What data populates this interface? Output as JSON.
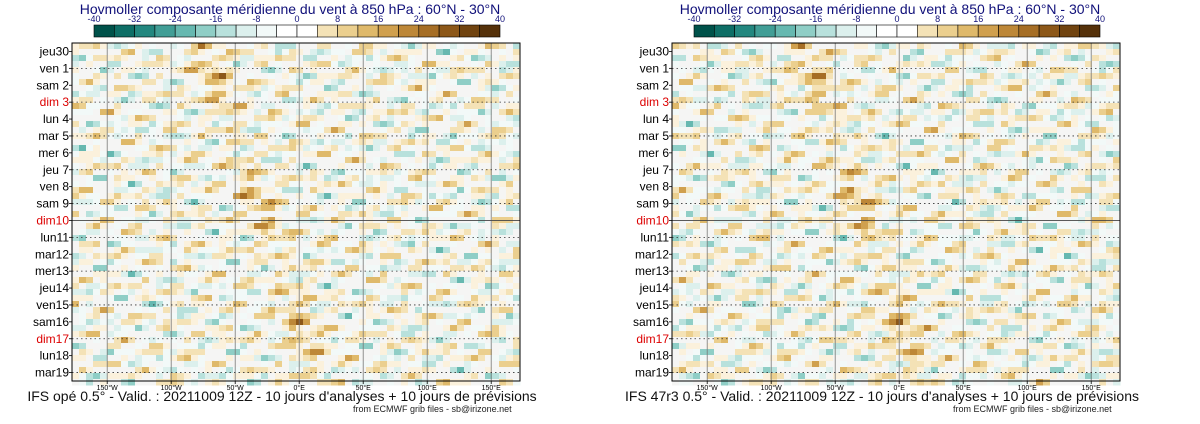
{
  "panels": [
    {
      "title": "Hovmoller composante méridienne du vent à 850 hPa : 60°N - 30°N",
      "caption": "IFS opé 0.5° - Valid. : 20211009 12Z - 10 jours d'analyses + 10 jours de prévisions",
      "credit": "from ECMWF grib files - sb@irizone.net"
    },
    {
      "title": "Hovmoller composante méridienne du vent à 850 hPa : 60°N - 30°N",
      "caption": "IFS 47r3 0.5° - Valid. : 20211009 12Z - 10 jours d'analyses + 10 jours de prévisions",
      "credit": "from ECMWF grib files - sb@irizone.net"
    }
  ],
  "colors": {
    "weekend": "#dd0000",
    "title": "#10107a",
    "neg": [
      "#00524a",
      "#0e6e66",
      "#23877f",
      "#419e96",
      "#66b8b0",
      "#8fcec6",
      "#b8e1dc",
      "#dcf0ed",
      "#f2f9f8"
    ],
    "pos": [
      "#fbf1dc",
      "#f4e2b6",
      "#ebcf8e",
      "#dfb96a",
      "#d0a04e",
      "#bd8737",
      "#a66e25",
      "#8c5718",
      "#70430f",
      "#55310a"
    ]
  },
  "chart_data": {
    "type": "heatmap",
    "variable": "composante méridienne du vent à 850 hPa",
    "colorbar": {
      "ticks": [
        "-40",
        "-32",
        "-24",
        "-16",
        "-8",
        "0",
        "8",
        "16",
        "24",
        "32",
        "40"
      ],
      "range": [
        -40,
        40
      ]
    },
    "x_ticks": [
      "150°W",
      "100°W",
      "50°W",
      "0°E",
      "50°E",
      "100°E",
      "150°E"
    ],
    "y_labels": [
      {
        "label": "jeu30",
        "weekend": false
      },
      {
        "label": "ven 1",
        "weekend": false
      },
      {
        "label": "sam 2",
        "weekend": false
      },
      {
        "label": "dim 3",
        "weekend": true
      },
      {
        "label": "lun 4",
        "weekend": false
      },
      {
        "label": "mar 5",
        "weekend": false
      },
      {
        "label": "mer 6",
        "weekend": false
      },
      {
        "label": "jeu 7",
        "weekend": false
      },
      {
        "label": "ven 8",
        "weekend": false
      },
      {
        "label": "sam 9",
        "weekend": false
      },
      {
        "label": "dim10",
        "weekend": true
      },
      {
        "label": "lun11",
        "weekend": false
      },
      {
        "label": "mar12",
        "weekend": false
      },
      {
        "label": "mer13",
        "weekend": false
      },
      {
        "label": "jeu14",
        "weekend": false
      },
      {
        "label": "ven15",
        "weekend": false
      },
      {
        "label": "sam16",
        "weekend": false
      },
      {
        "label": "dim17",
        "weekend": true
      },
      {
        "label": "lun18",
        "weekend": false
      },
      {
        "label": "mar19",
        "weekend": false
      }
    ],
    "analysis_end": "dim10"
  }
}
